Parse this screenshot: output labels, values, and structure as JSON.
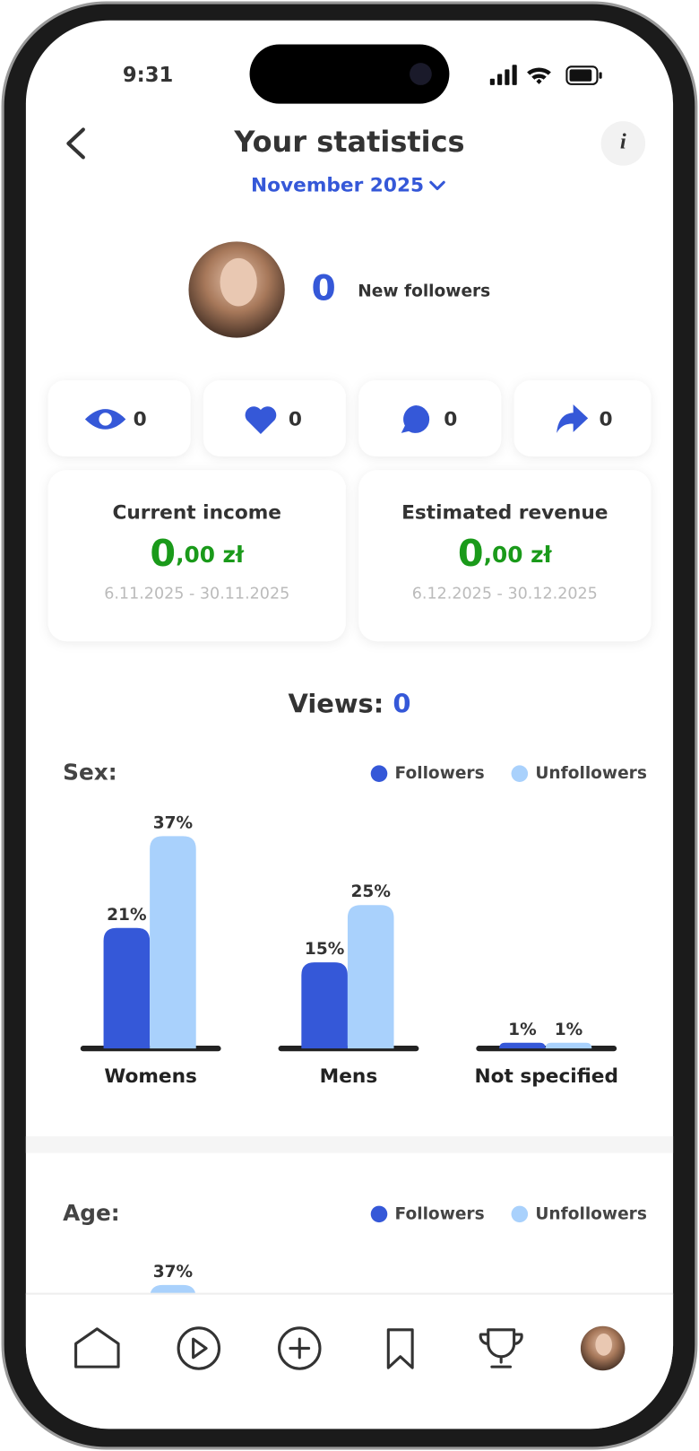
{
  "status_bar": {
    "time": "9:31"
  },
  "header": {
    "title": "Your statistics",
    "period": "November 2025"
  },
  "profile": {
    "new_followers": 0,
    "new_followers_label": "New followers"
  },
  "stats": [
    {
      "icon": "views",
      "value": 0
    },
    {
      "icon": "likes",
      "value": 0
    },
    {
      "icon": "comments",
      "value": 0
    },
    {
      "icon": "shares",
      "value": 0
    }
  ],
  "income_cards": [
    {
      "title": "Current income",
      "amount_integer": "0",
      "amount_decimal": ",00 zł",
      "range": "6.11.2025 - 30.11.2025"
    },
    {
      "title": "Estimated revenue",
      "amount_integer": "0",
      "amount_decimal": ",00 zł",
      "range": "6.12.2025 - 30.12.2025"
    }
  ],
  "views": {
    "label": "Views:",
    "value": 0
  },
  "chart_data": [
    {
      "type": "bar",
      "title": "Sex:",
      "categories": [
        "Womens",
        "Mens",
        "Not specified"
      ],
      "series": [
        {
          "name": "Followers",
          "color": "#3558d8",
          "values": [
            21,
            15,
            1
          ],
          "value_labels": [
            "21%",
            "15%",
            "1%"
          ]
        },
        {
          "name": "Unfollowers",
          "color": "#a9d1fc",
          "values": [
            37,
            25,
            1
          ],
          "value_labels": [
            "37%",
            "25%",
            "1%"
          ]
        }
      ]
    },
    {
      "type": "bar",
      "title": "Age:",
      "series": [
        {
          "name": "Followers",
          "color": "#3558d8"
        },
        {
          "name": "Unfollowers",
          "color": "#a9d1fc",
          "values": [
            37
          ],
          "value_labels": [
            "37%"
          ]
        }
      ]
    }
  ]
}
